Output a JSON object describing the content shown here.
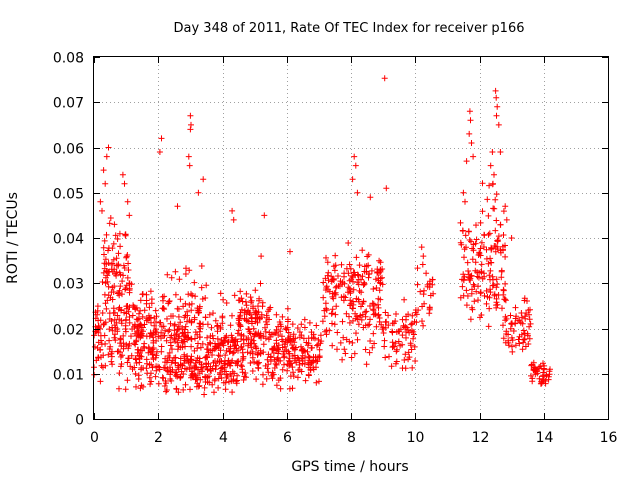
{
  "chart_data": {
    "type": "scatter",
    "title": "Day 348 of 2011, Rate Of TEC Index for receiver p166",
    "xlabel": "GPS time / hours",
    "ylabel": "ROTI / TECUs",
    "xlim": [
      0,
      16
    ],
    "ylim": [
      0,
      0.08
    ],
    "xticks": [
      0,
      2,
      4,
      6,
      8,
      10,
      12,
      14,
      16
    ],
    "yticks": [
      0,
      0.01,
      0.02,
      0.03,
      0.04,
      0.05,
      0.06,
      0.07,
      0.08
    ],
    "xtick_labels": [
      "0",
      "2",
      "4",
      "6",
      "8",
      "10",
      "12",
      "14",
      "16"
    ],
    "ytick_labels": [
      "0",
      "0.01",
      "0.02",
      "0.03",
      "0.04",
      "0.05",
      "0.06",
      "0.07",
      "0.08"
    ],
    "grid": true,
    "marker": "+",
    "series_color": "#ff0000",
    "density_segments": [
      {
        "x0": 0.0,
        "x1": 0.3,
        "ymin": 0.007,
        "ymax": 0.04,
        "center": 0.017,
        "n": 40
      },
      {
        "x0": 0.3,
        "x1": 1.2,
        "ymin": 0.005,
        "ymax": 0.055,
        "center": 0.025,
        "n": 170
      },
      {
        "x0": 1.2,
        "x1": 2.0,
        "ymin": 0.005,
        "ymax": 0.035,
        "center": 0.016,
        "n": 140
      },
      {
        "x0": 2.0,
        "x1": 3.5,
        "ymin": 0.005,
        "ymax": 0.042,
        "center": 0.014,
        "n": 260
      },
      {
        "x0": 3.5,
        "x1": 4.5,
        "ymin": 0.005,
        "ymax": 0.032,
        "center": 0.013,
        "n": 160
      },
      {
        "x0": 4.5,
        "x1": 5.5,
        "ymin": 0.006,
        "ymax": 0.034,
        "center": 0.02,
        "n": 160
      },
      {
        "x0": 5.5,
        "x1": 6.3,
        "ymin": 0.006,
        "ymax": 0.027,
        "center": 0.016,
        "n": 110
      },
      {
        "x0": 6.3,
        "x1": 7.1,
        "ymin": 0.007,
        "ymax": 0.026,
        "center": 0.014,
        "n": 80
      },
      {
        "x0": 7.1,
        "x1": 8.0,
        "ymin": 0.012,
        "ymax": 0.042,
        "center": 0.026,
        "n": 90
      },
      {
        "x0": 8.0,
        "x1": 9.0,
        "ymin": 0.012,
        "ymax": 0.045,
        "center": 0.027,
        "n": 120
      },
      {
        "x0": 9.0,
        "x1": 10.0,
        "ymin": 0.01,
        "ymax": 0.03,
        "center": 0.018,
        "n": 70
      },
      {
        "x0": 10.0,
        "x1": 10.6,
        "ymin": 0.018,
        "ymax": 0.038,
        "center": 0.026,
        "n": 30
      },
      {
        "x0": 11.4,
        "x1": 12.0,
        "ymin": 0.02,
        "ymax": 0.05,
        "center": 0.033,
        "n": 60
      },
      {
        "x0": 12.0,
        "x1": 12.8,
        "ymin": 0.017,
        "ymax": 0.06,
        "center": 0.033,
        "n": 100
      },
      {
        "x0": 12.8,
        "x1": 13.6,
        "ymin": 0.012,
        "ymax": 0.03,
        "center": 0.02,
        "n": 60
      },
      {
        "x0": 13.6,
        "x1": 14.2,
        "ymin": 0.006,
        "ymax": 0.014,
        "center": 0.01,
        "n": 45
      }
    ],
    "outliers": [
      [
        9.05,
        0.0753
      ],
      [
        2.1,
        0.062
      ],
      [
        2.05,
        0.059
      ],
      [
        3.0,
        0.067
      ],
      [
        3.02,
        0.065
      ],
      [
        3.0,
        0.064
      ],
      [
        2.95,
        0.058
      ],
      [
        2.98,
        0.056
      ],
      [
        3.4,
        0.053
      ],
      [
        3.25,
        0.05
      ],
      [
        0.45,
        0.06
      ],
      [
        0.4,
        0.058
      ],
      [
        0.3,
        0.055
      ],
      [
        0.35,
        0.052
      ],
      [
        0.9,
        0.054
      ],
      [
        0.95,
        0.052
      ],
      [
        11.7,
        0.068
      ],
      [
        11.72,
        0.066
      ],
      [
        11.68,
        0.063
      ],
      [
        11.75,
        0.061
      ],
      [
        11.8,
        0.058
      ],
      [
        11.6,
        0.057
      ],
      [
        12.5,
        0.0725
      ],
      [
        12.52,
        0.071
      ],
      [
        12.55,
        0.069
      ],
      [
        12.53,
        0.067
      ],
      [
        12.6,
        0.065
      ],
      [
        12.4,
        0.059
      ],
      [
        12.65,
        0.059
      ],
      [
        12.35,
        0.056
      ],
      [
        12.45,
        0.054
      ],
      [
        12.42,
        0.052
      ],
      [
        11.5,
        0.05
      ],
      [
        11.55,
        0.048
      ],
      [
        8.1,
        0.058
      ],
      [
        8.15,
        0.056
      ],
      [
        8.05,
        0.053
      ],
      [
        8.2,
        0.05
      ],
      [
        9.1,
        0.051
      ],
      [
        8.6,
        0.049
      ],
      [
        4.3,
        0.046
      ],
      [
        4.35,
        0.044
      ],
      [
        2.6,
        0.047
      ],
      [
        5.3,
        0.045
      ],
      [
        12.8,
        0.047
      ],
      [
        12.85,
        0.044
      ],
      [
        13.0,
        0.04
      ],
      [
        6.1,
        0.037
      ],
      [
        5.2,
        0.036
      ],
      [
        10.2,
        0.038
      ],
      [
        10.25,
        0.036
      ],
      [
        1.05,
        0.048
      ],
      [
        1.1,
        0.045
      ],
      [
        0.2,
        0.048
      ],
      [
        0.25,
        0.046
      ]
    ]
  }
}
